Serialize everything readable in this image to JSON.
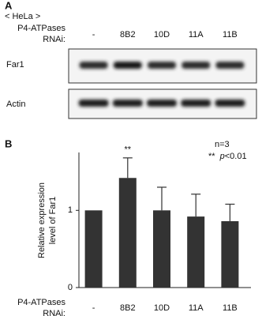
{
  "panel_a": {
    "label": "A",
    "cell_line": "< HeLa >",
    "row_label": [
      "P4-ATPases",
      "RNAi:"
    ],
    "lanes": [
      "-",
      "8B2",
      "10D",
      "11A",
      "11B"
    ],
    "blots": [
      "Far1",
      "Actin"
    ]
  },
  "chart_data": {
    "type": "bar",
    "panel_label": "B",
    "y_label": [
      "Relative expression",
      "level of Far1"
    ],
    "x_label": [
      "P4-ATPases",
      "RNAi:"
    ],
    "categories": [
      "-",
      "8B2",
      "10D",
      "11A",
      "11B"
    ],
    "values": [
      1.0,
      1.42,
      1.0,
      0.92,
      0.86
    ],
    "errors": [
      0,
      0.26,
      0.3,
      0.29,
      0.22
    ],
    "value_labels": [
      null,
      "**",
      null,
      null,
      null
    ],
    "color": "#333333",
    "ylim": [
      0,
      1.75
    ],
    "yticks": [
      0,
      1
    ],
    "annotations": {
      "n": "n=3",
      "stars": "**",
      "p": "p",
      "threshold": "<0.01"
    }
  }
}
